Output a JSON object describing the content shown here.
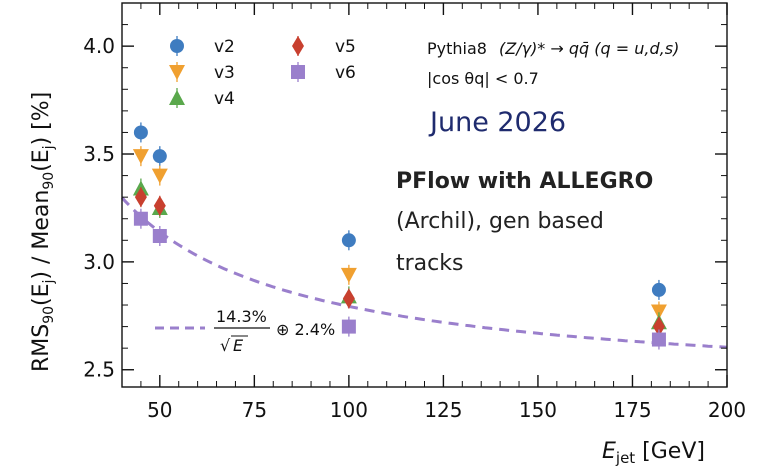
{
  "chart_data": {
    "type": "scatter",
    "xlabel_main": "E",
    "xlabel_sub": "jet",
    "xlabel_unit": " [GeV]",
    "ylabel": {
      "p1": "RMS",
      "s1": "90",
      "p2": "(E",
      "s2": "j",
      "p3": ") / Mean",
      "s3": "90",
      "p4": "(E",
      "s4": "j",
      "p5": ") [%]"
    },
    "xlim": [
      40,
      200
    ],
    "ylim": [
      2.42,
      4.2
    ],
    "xticks": [
      50,
      75,
      100,
      125,
      150,
      175,
      200
    ],
    "xtick_labels": [
      "50",
      "75",
      "100",
      "125",
      "150",
      "175",
      "200"
    ],
    "yticks": [
      2.5,
      3.0,
      3.5,
      4.0
    ],
    "ytick_labels": [
      "2.5",
      "3.0",
      "3.5",
      "4.0"
    ],
    "grid": false,
    "legend_placement": "top-left",
    "series": [
      {
        "name": "v2",
        "marker": "circle",
        "color": "#3f7cc0",
        "x": [
          45,
          50,
          100,
          182
        ],
        "y": [
          3.6,
          3.49,
          3.1,
          2.87
        ]
      },
      {
        "name": "v3",
        "marker": "triangle-down",
        "color": "#f0a030",
        "x": [
          45,
          50,
          100,
          182
        ],
        "y": [
          3.49,
          3.4,
          2.94,
          2.77
        ]
      },
      {
        "name": "v4",
        "marker": "triangle-up",
        "color": "#5aa84c",
        "x": [
          45,
          50,
          100,
          182
        ],
        "y": [
          3.34,
          3.25,
          2.84,
          2.72
        ]
      },
      {
        "name": "v5",
        "marker": "diamond",
        "color": "#c8402f",
        "x": [
          45,
          50,
          100,
          182
        ],
        "y": [
          3.3,
          3.26,
          2.83,
          2.7
        ]
      },
      {
        "name": "v6",
        "marker": "square",
        "color": "#9a7fcc",
        "x": [
          45,
          50,
          100,
          182
        ],
        "y": [
          3.2,
          3.12,
          2.7,
          2.64
        ]
      }
    ],
    "fit": {
      "color": "#9a7fcc",
      "stochastic": 14.3,
      "constant": 2.4,
      "label_num": "14.3%",
      "label_den": "E",
      "label_rest": "⊕ 2.4%"
    },
    "annotations": {
      "process_prefix": "Pythia8",
      "process_formula": "(Z/γ)* → qq̄ (q = u,d,s)",
      "cut": "|cos θq| < 0.7",
      "date": "June 2026",
      "title": "PFlow with ALLEGRO",
      "note_lines": [
        "(Archil), gen based",
        "tracks"
      ]
    },
    "date_color": "#1f2b6e"
  }
}
